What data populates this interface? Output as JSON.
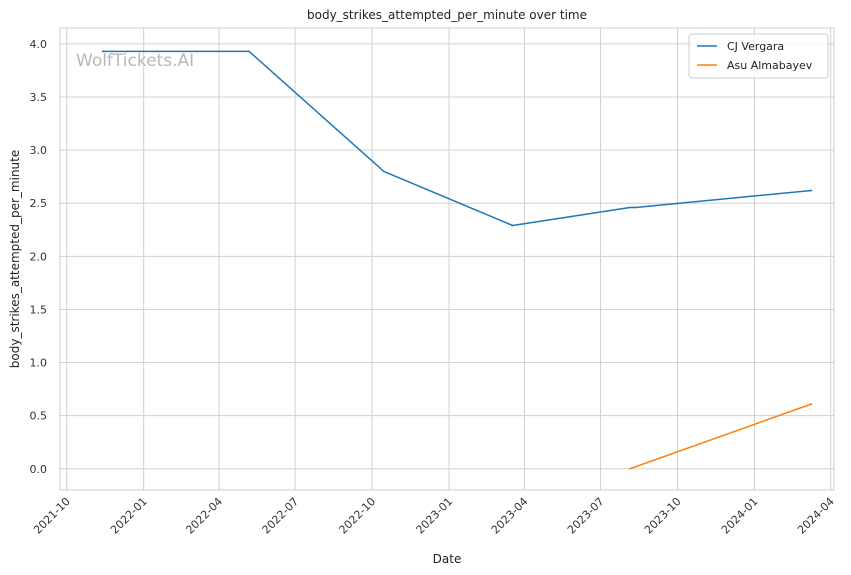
{
  "chart_data": {
    "type": "line",
    "title": "body_strikes_attempted_per_minute over time",
    "xlabel": "Date",
    "ylabel": "body_strikes_attempted_per_minute",
    "watermark": "WolfTickets.AI",
    "x_is_date": true,
    "xlim": [
      "2021-09-23",
      "2024-04-05"
    ],
    "ylim": [
      -0.2,
      4.15
    ],
    "x_ticks": [
      "2021-10-01",
      "2022-01-01",
      "2022-04-01",
      "2022-07-01",
      "2022-10-01",
      "2023-01-01",
      "2023-04-01",
      "2023-07-01",
      "2023-10-01",
      "2024-01-01",
      "2024-04-01"
    ],
    "x_tick_labels": [
      "2021-10",
      "2022-01",
      "2022-04",
      "2022-07",
      "2022-10",
      "2023-01",
      "2023-04",
      "2023-07",
      "2023-10",
      "2024-01",
      "2024-04"
    ],
    "y_ticks": [
      0.0,
      0.5,
      1.0,
      1.5,
      2.0,
      2.5,
      3.0,
      3.5,
      4.0
    ],
    "y_tick_labels": [
      "0.0",
      "0.5",
      "1.0",
      "1.5",
      "2.0",
      "2.5",
      "3.0",
      "3.5",
      "4.0"
    ],
    "grid": true,
    "legend_position": "top-right",
    "series": [
      {
        "name": "CJ Vergara",
        "color": "#1f77b4",
        "x": [
          "2021-11-13",
          "2022-05-07",
          "2022-10-15",
          "2023-03-18",
          "2023-08-05",
          "2023-08-12",
          "2024-03-09"
        ],
        "y": [
          3.93,
          3.93,
          2.8,
          2.29,
          2.46,
          2.46,
          2.62
        ]
      },
      {
        "name": "Asu Almabayev",
        "color": "#ff7f0e",
        "x": [
          "2023-08-05",
          "2024-03-09"
        ],
        "y": [
          0.0,
          0.61
        ]
      }
    ]
  }
}
